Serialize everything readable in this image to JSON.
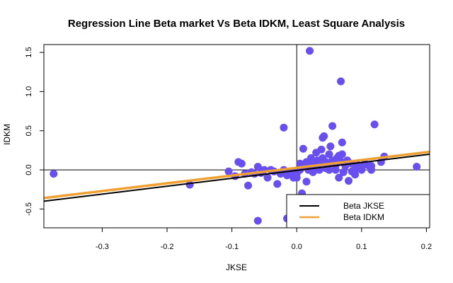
{
  "chart_data": {
    "type": "scatter",
    "title": "Regression Line Beta market Vs Beta IDKM, Least Square Analysis",
    "xlabel": "JKSE",
    "ylabel": "IDKM",
    "xlim": [
      -0.39,
      0.205
    ],
    "ylim": [
      -0.74,
      1.6
    ],
    "x_ticks": [
      -0.3,
      -0.2,
      -0.1,
      0.0,
      0.1,
      0.2
    ],
    "x_tick_labels": [
      "-0.3",
      "-0.2",
      "-0.1",
      "0.0",
      "0.1",
      "0.2"
    ],
    "y_ticks": [
      -0.5,
      0.0,
      0.5,
      1.0,
      1.5
    ],
    "y_tick_labels": [
      "-0.5",
      "0.0",
      "0.5",
      "1.0",
      "1.5"
    ],
    "reference_lines": {
      "x": 0.0,
      "y": 0.0
    },
    "grid": false,
    "legend_position": "bottom-right",
    "colors": {
      "points": "#6a4ff0",
      "jkse_line": "#000000",
      "idkm_line": "#f0a030",
      "axes": "#000000"
    },
    "series": [
      {
        "name": "Beta JKSE",
        "kind": "line",
        "color": "#000000",
        "x": [
          -0.39,
          0.205
        ],
        "y": [
          -0.4,
          0.2
        ]
      },
      {
        "name": "Beta IDKM",
        "kind": "line",
        "color": "#f0a030",
        "x": [
          -0.39,
          0.205
        ],
        "y": [
          -0.36,
          0.23
        ]
      }
    ],
    "points": {
      "color": "#6a4ff0",
      "x": [
        -0.375,
        -0.165,
        -0.105,
        -0.095,
        -0.09,
        -0.085,
        -0.08,
        -0.075,
        -0.07,
        -0.065,
        -0.06,
        -0.06,
        -0.055,
        -0.05,
        -0.045,
        -0.04,
        -0.035,
        -0.03,
        -0.025,
        -0.02,
        -0.02,
        -0.015,
        -0.015,
        -0.01,
        -0.01,
        -0.005,
        -0.005,
        0.0,
        0.0,
        0.005,
        0.005,
        0.008,
        0.01,
        0.012,
        0.015,
        0.015,
        0.018,
        0.02,
        0.02,
        0.022,
        0.025,
        0.025,
        0.028,
        0.03,
        0.03,
        0.032,
        0.035,
        0.035,
        0.038,
        0.04,
        0.04,
        0.042,
        0.045,
        0.045,
        0.048,
        0.05,
        0.05,
        0.052,
        0.055,
        0.055,
        0.058,
        0.06,
        0.06,
        0.062,
        0.065,
        0.065,
        0.068,
        0.07,
        0.07,
        0.072,
        0.075,
        0.078,
        0.08,
        0.085,
        0.085,
        0.09,
        0.09,
        0.095,
        0.1,
        0.1,
        0.105,
        0.11,
        0.115,
        0.115,
        0.12,
        0.13,
        0.135,
        0.185,
        0.07,
        0.018
      ],
      "y": [
        -0.05,
        -0.19,
        -0.02,
        -0.08,
        0.1,
        0.08,
        -0.05,
        -0.2,
        -0.03,
        -0.05,
        0.04,
        -0.65,
        -0.04,
        0.0,
        -0.1,
        0.0,
        -0.02,
        -0.18,
        -0.05,
        0.54,
        0.0,
        -0.07,
        -0.62,
        -0.04,
        -0.05,
        -0.03,
        -0.1,
        -0.05,
        -0.1,
        0.0,
        0.08,
        -0.3,
        0.27,
        0.06,
        0.1,
        -0.15,
        0.08,
        0.0,
        1.52,
        0.15,
        0.05,
        -0.03,
        0.0,
        0.1,
        0.22,
        0.12,
        0.08,
        0.0,
        0.26,
        0.41,
        0.15,
        0.43,
        0.1,
        0.02,
        0.05,
        0.2,
        0.0,
        0.3,
        0.56,
        0.12,
        0.08,
        0.0,
        0.06,
        0.15,
        0.18,
        -0.1,
        1.13,
        0.1,
        0.35,
        -0.03,
        0.05,
        0.12,
        -0.14,
        0.08,
        -0.02,
        0.0,
        -0.06,
        0.06,
        0.0,
        0.02,
        0.08,
        0.06,
        0.05,
        0.0,
        0.58,
        0.1,
        0.17,
        0.04,
        0.2,
        0.0
      ]
    }
  }
}
